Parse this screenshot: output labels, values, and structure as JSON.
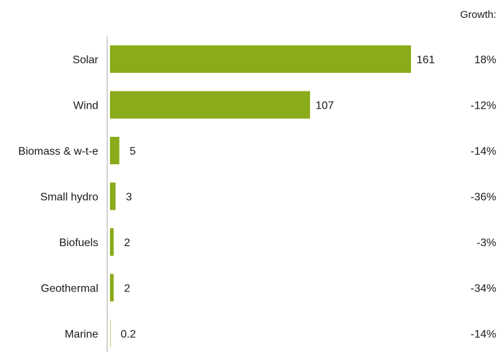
{
  "chart_data": {
    "type": "bar",
    "orientation": "horizontal",
    "title": "",
    "xlabel": "",
    "ylabel": "",
    "categories": [
      "Solar",
      "Wind",
      "Biomass & w-t-e",
      "Small hydro",
      "Biofuels",
      "Geothermal",
      "Marine"
    ],
    "values": [
      161,
      107,
      5,
      3,
      2,
      2,
      0.2
    ],
    "value_labels": [
      "161",
      "107",
      "5",
      "3",
      "2",
      "2",
      "0.2"
    ],
    "growth_header": "Growth:",
    "growth": [
      "18%",
      "-12%",
      "-14%",
      "-36%",
      "-3%",
      "-34%",
      "-14%"
    ],
    "bar_color": "#8aab1a",
    "axis_color": "#a6a6a6",
    "grid": false,
    "legend": "none"
  }
}
